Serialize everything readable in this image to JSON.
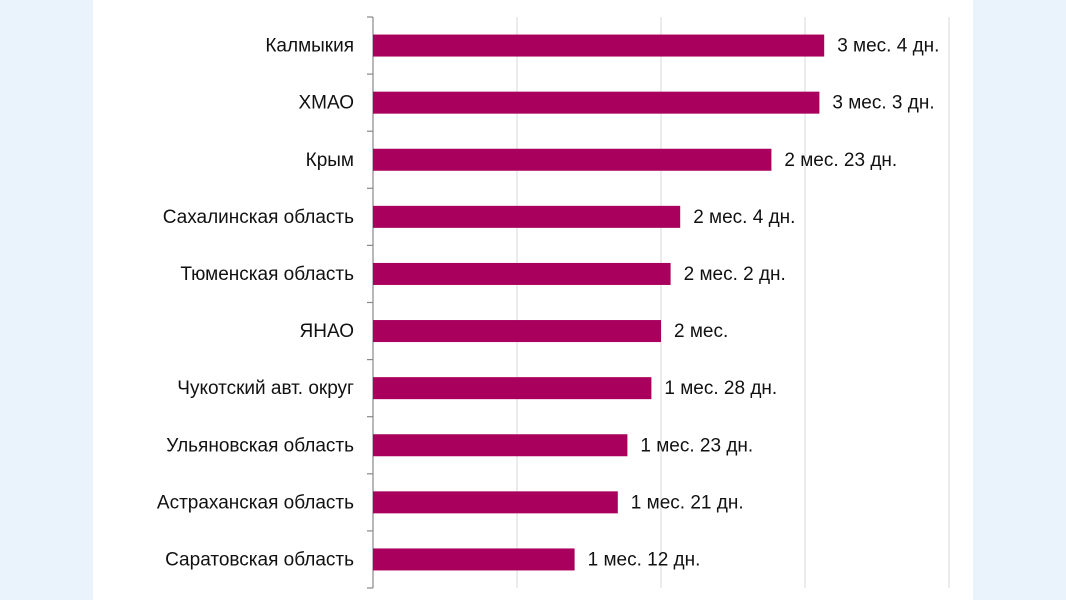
{
  "chart_data": {
    "type": "hbar",
    "categories": [
      "Калмыкия",
      "ХМАО",
      "Крым",
      "Сахалинская область",
      "Тюменская область",
      "ЯНАО",
      "Чукотский авт. округ",
      "Ульяновская область",
      "Астраханская область",
      "Саратовская область"
    ],
    "values": [
      94,
      93,
      83,
      64,
      62,
      60,
      58,
      53,
      51,
      42
    ],
    "value_labels": [
      "3 мес. 4 дн.",
      "3 мес. 3 дн.",
      "2 мес. 23 дн.",
      "2 мес. 4 дн.",
      "2 мес. 2 дн.",
      "2 мес.",
      "1 мес. 28 дн.",
      "1 мес. 23 дн.",
      "1 мес. 21 дн.",
      "1 мес. 12 дн."
    ],
    "color": "#a8005c",
    "xlim": [
      0,
      120
    ],
    "xticks": [
      0,
      30,
      60,
      90,
      120
    ],
    "grid": true
  }
}
